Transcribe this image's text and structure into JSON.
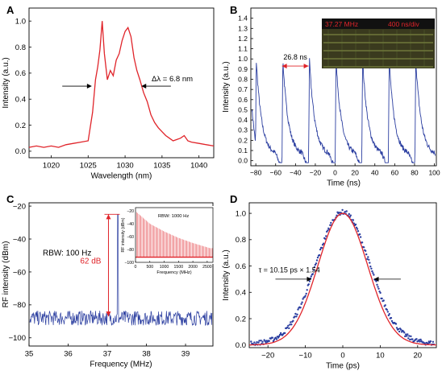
{
  "colors": {
    "red": "#e0242a",
    "blue": "#2b3ea0",
    "axis": "#000000",
    "osc_bg": "#3a3a1e"
  },
  "chart_data": [
    {
      "panel": "A",
      "type": "line",
      "xlabel": "Wavelength (nm)",
      "ylabel": "Intensity (a.u.)",
      "xlim": [
        1017,
        1042
      ],
      "ylim": [
        -0.05,
        1.1
      ],
      "xticks": [
        "1020",
        "1025",
        "1030",
        "1035",
        "1040"
      ],
      "yticks": [
        "0.0",
        "0.2",
        "0.4",
        "0.6",
        "0.8",
        "1.0"
      ],
      "annotation": "Δλ = 6.8 nm",
      "series": [
        {
          "color": "#e0242a",
          "points": [
            [
              1017,
              0.03
            ],
            [
              1018,
              0.04
            ],
            [
              1019,
              0.03
            ],
            [
              1020,
              0.04
            ],
            [
              1021,
              0.03
            ],
            [
              1022,
              0.05
            ],
            [
              1023,
              0.06
            ],
            [
              1024,
              0.07
            ],
            [
              1025,
              0.08
            ],
            [
              1025.6,
              0.3
            ],
            [
              1026,
              0.55
            ],
            [
              1026.3,
              0.65
            ],
            [
              1026.6,
              0.78
            ],
            [
              1026.9,
              1.0
            ],
            [
              1027.2,
              0.75
            ],
            [
              1027.6,
              0.55
            ],
            [
              1028,
              0.62
            ],
            [
              1028.4,
              0.58
            ],
            [
              1028.8,
              0.7
            ],
            [
              1029.2,
              0.75
            ],
            [
              1029.6,
              0.85
            ],
            [
              1030,
              0.92
            ],
            [
              1030.4,
              0.95
            ],
            [
              1030.8,
              0.88
            ],
            [
              1031.2,
              0.72
            ],
            [
              1031.6,
              0.62
            ],
            [
              1032,
              0.55
            ],
            [
              1032.5,
              0.45
            ],
            [
              1033,
              0.38
            ],
            [
              1033.5,
              0.28
            ],
            [
              1034,
              0.22
            ],
            [
              1034.5,
              0.18
            ],
            [
              1035,
              0.15
            ],
            [
              1035.5,
              0.12
            ],
            [
              1036,
              0.1
            ],
            [
              1036.5,
              0.08
            ],
            [
              1037,
              0.09
            ],
            [
              1037.5,
              0.1
            ],
            [
              1038,
              0.12
            ],
            [
              1038.5,
              0.08
            ],
            [
              1039,
              0.07
            ],
            [
              1040,
              0.06
            ],
            [
              1041,
              0.05
            ],
            [
              1042,
              0.04
            ]
          ]
        }
      ]
    },
    {
      "panel": "B",
      "type": "line",
      "xlabel": "Time (ns)",
      "ylabel": "Intensity (a.u.)",
      "xlim": [
        -85,
        102
      ],
      "ylim": [
        -0.05,
        1.5
      ],
      "xticks": [
        "−80",
        "−60",
        "−40",
        "−20",
        "0",
        "20",
        "40",
        "60",
        "80",
        "100"
      ],
      "yticks": [
        "0.0",
        "0.1",
        "0.2",
        "0.3",
        "0.4",
        "0.5",
        "0.6",
        "0.7",
        "0.8",
        "0.9",
        "1.0",
        "1.1",
        "1.2",
        "1.3",
        "1.4"
      ],
      "annotation": "26.8 ns",
      "pulse_period": 26.8,
      "first_pulse": -80.4,
      "inset": {
        "label_left": "37.27 MHz",
        "label_right": "400 ns/div"
      },
      "series": [
        {
          "color": "#2b3ea0"
        }
      ]
    },
    {
      "panel": "C",
      "type": "line",
      "xlabel": "Frequency (MHz)",
      "ylabel": "RF intensity (dBm)",
      "xlim": [
        35,
        39.7
      ],
      "ylim": [
        -105,
        -18
      ],
      "xticks": [
        "35",
        "36",
        "37",
        "38",
        "39"
      ],
      "yticks": [
        "−100",
        "−80",
        "−60",
        "−40",
        "−20"
      ],
      "annotations": [
        "RBW: 100 Hz",
        "62 dB"
      ],
      "peak": {
        "x": 37.27,
        "y": -25
      },
      "noise_floor": -88,
      "series": [
        {
          "color": "#2b3ea0"
        }
      ],
      "inset": {
        "xlabel": "Frequency (MHz)",
        "ylabel": "RF intensity (dBm)",
        "label": "RBW: 1000 Hz",
        "xticks": [
          "0",
          "500",
          "1000",
          "1500",
          "2000",
          "2500"
        ],
        "yticks": [
          "−20",
          "−40",
          "−60",
          "−80",
          "−100"
        ],
        "xlim": [
          0,
          2700
        ],
        "ylim": [
          -100,
          -15
        ],
        "harmonic_spacing": 37.27,
        "envelope": [
          [
            37,
            -22
          ],
          [
            500,
            -40
          ],
          [
            1000,
            -52
          ],
          [
            1500,
            -62
          ],
          [
            2000,
            -70
          ],
          [
            2600,
            -78
          ]
        ]
      }
    },
    {
      "panel": "D",
      "type": "scatter",
      "xlabel": "Time (ps)",
      "ylabel": "Intensity (a.u.)",
      "xlim": [
        -25,
        25
      ],
      "ylim": [
        -0.02,
        1.08
      ],
      "xticks": [
        "−20",
        "−10",
        "0",
        "10",
        "20"
      ],
      "yticks": [
        "0.0",
        "0.2",
        "0.4",
        "0.6",
        "0.8",
        "1.0"
      ],
      "annotation": "τ = 10.15 ps × 1.54",
      "fit_fwhm": 15.6,
      "series": [
        {
          "color": "#2b3ea0"
        },
        {
          "color": "#e0242a"
        }
      ]
    }
  ]
}
